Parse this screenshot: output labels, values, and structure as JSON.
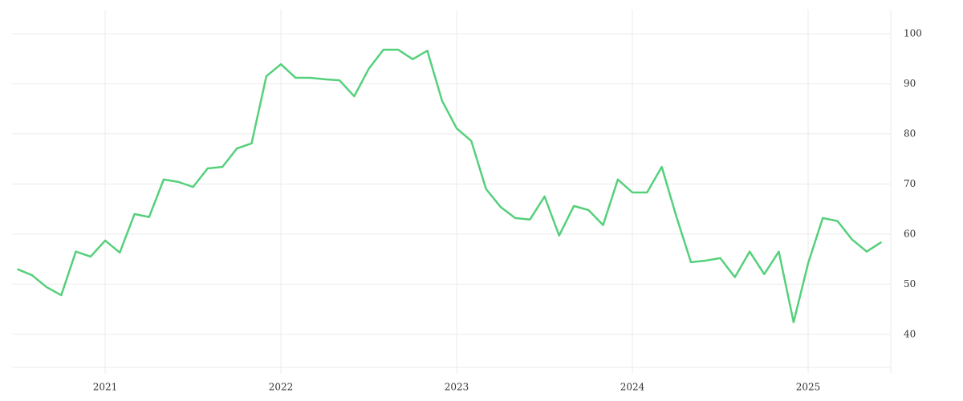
{
  "chart_data": {
    "type": "line",
    "x": [
      2020.5,
      2020.583,
      2020.667,
      2020.75,
      2020.833,
      2020.917,
      2021,
      2021.083,
      2021.167,
      2021.25,
      2021.333,
      2021.417,
      2021.5,
      2021.583,
      2021.667,
      2021.75,
      2021.833,
      2021.917,
      2022,
      2022.083,
      2022.167,
      2022.25,
      2022.333,
      2022.417,
      2022.5,
      2022.583,
      2022.667,
      2022.75,
      2022.833,
      2022.917,
      2023,
      2023.083,
      2023.167,
      2023.25,
      2023.333,
      2023.417,
      2023.5,
      2023.583,
      2023.667,
      2023.75,
      2023.833,
      2023.917,
      2024,
      2024.083,
      2024.167,
      2024.25,
      2024.333,
      2024.417,
      2024.5,
      2024.583,
      2024.667,
      2024.75,
      2024.833,
      2024.917,
      2025,
      2025.083,
      2025.167,
      2025.25,
      2025.333,
      2025.417
    ],
    "values": [
      53.0,
      51.8,
      49.4,
      47.8,
      56.5,
      55.5,
      58.7,
      56.3,
      64.0,
      63.4,
      70.9,
      70.4,
      69.4,
      73.1,
      73.4,
      77.1,
      78.1,
      91.5,
      93.9,
      91.2,
      91.2,
      90.9,
      90.7,
      87.5,
      93.0,
      96.8,
      96.8,
      94.9,
      96.6,
      86.6,
      81.1,
      78.6,
      69.0,
      65.4,
      63.2,
      62.9,
      67.5,
      59.7,
      65.6,
      64.8,
      61.8,
      70.9,
      68.3,
      68.3,
      73.4,
      63.5,
      54.4,
      54.7,
      55.2,
      51.4,
      56.5,
      52.0,
      56.5,
      42.4,
      54.2,
      63.2,
      62.6,
      58.9,
      56.5,
      58.4
    ],
    "color": "#55d07b",
    "xlim": [
      2020.47,
      2025.47
    ],
    "xticks": [
      2021,
      2022,
      2023,
      2024,
      2025
    ],
    "ylim": [
      33.4,
      104.8
    ],
    "yticks": [
      40,
      50,
      60,
      70,
      80,
      90,
      100
    ],
    "grid": true
  }
}
